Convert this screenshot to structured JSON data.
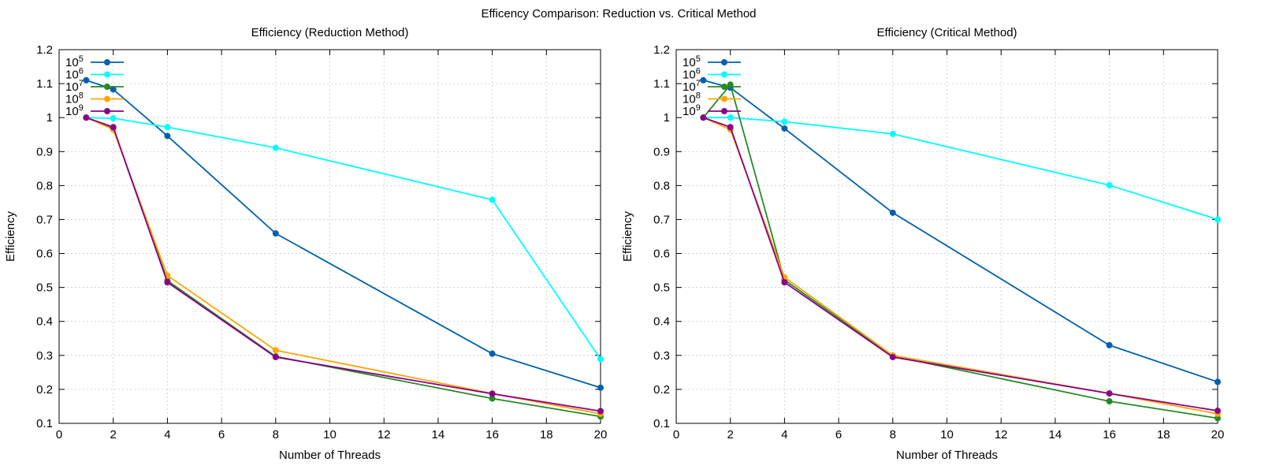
{
  "title": "Efficency Comparison: Reduction vs. Critical Method",
  "chart_data": [
    {
      "type": "line",
      "title": "Efficiency (Reduction Method)",
      "xlabel": "Number of Threads",
      "ylabel": "Efficiency",
      "xlim": [
        0,
        20
      ],
      "ylim": [
        0.1,
        1.2
      ],
      "xticks": [
        0,
        2,
        4,
        6,
        8,
        10,
        12,
        14,
        16,
        18,
        20
      ],
      "yticks": [
        0.1,
        0.2,
        0.3,
        0.4,
        0.5,
        0.6,
        0.7,
        0.8,
        0.9,
        1,
        1.1,
        1.2
      ],
      "grid": true,
      "legend": "top-left",
      "x": [
        1,
        2,
        4,
        8,
        16,
        20
      ],
      "series": [
        {
          "name": "10",
          "exp": "5",
          "color": "#0060ad",
          "values": [
            1.11,
            1.083,
            0.946,
            0.659,
            0.305,
            0.205
          ]
        },
        {
          "name": "10",
          "exp": "6",
          "color": "#00ffff",
          "values": [
            1.0,
            0.998,
            0.972,
            0.911,
            0.758,
            0.289
          ]
        },
        {
          "name": "10",
          "exp": "7",
          "color": "#228b22",
          "values": [
            1.0,
            0.968,
            0.52,
            0.297,
            0.173,
            0.12
          ]
        },
        {
          "name": "10",
          "exp": "8",
          "color": "#ffa500",
          "values": [
            1.0,
            0.965,
            0.535,
            0.315,
            0.188,
            0.128
          ]
        },
        {
          "name": "10",
          "exp": "9",
          "color": "#8b008b",
          "values": [
            1.0,
            0.972,
            0.515,
            0.295,
            0.187,
            0.136
          ]
        }
      ]
    },
    {
      "type": "line",
      "title": "Efficiency (Critical Method)",
      "xlabel": "Number of Threads",
      "ylabel": "Efficiency",
      "xlim": [
        0,
        20
      ],
      "ylim": [
        0.1,
        1.2
      ],
      "xticks": [
        0,
        2,
        4,
        6,
        8,
        10,
        12,
        14,
        16,
        18,
        20
      ],
      "yticks": [
        0.1,
        0.2,
        0.3,
        0.4,
        0.5,
        0.6,
        0.7,
        0.8,
        0.9,
        1,
        1.1,
        1.2
      ],
      "grid": true,
      "legend": "top-left",
      "x": [
        1,
        2,
        4,
        8,
        16,
        20
      ],
      "series": [
        {
          "name": "10",
          "exp": "5",
          "color": "#0060ad",
          "values": [
            1.11,
            1.088,
            0.968,
            0.72,
            0.33,
            0.222
          ]
        },
        {
          "name": "10",
          "exp": "6",
          "color": "#00ffff",
          "values": [
            1.0,
            1.0,
            0.988,
            0.952,
            0.801,
            0.7
          ]
        },
        {
          "name": "10",
          "exp": "7",
          "color": "#228b22",
          "values": [
            1.0,
            1.097,
            0.522,
            0.298,
            0.165,
            0.115
          ]
        },
        {
          "name": "10",
          "exp": "8",
          "color": "#ffa500",
          "values": [
            1.0,
            0.965,
            0.53,
            0.3,
            0.188,
            0.128
          ]
        },
        {
          "name": "10",
          "exp": "9",
          "color": "#8b008b",
          "values": [
            1.0,
            0.972,
            0.515,
            0.295,
            0.188,
            0.137
          ]
        }
      ]
    }
  ]
}
